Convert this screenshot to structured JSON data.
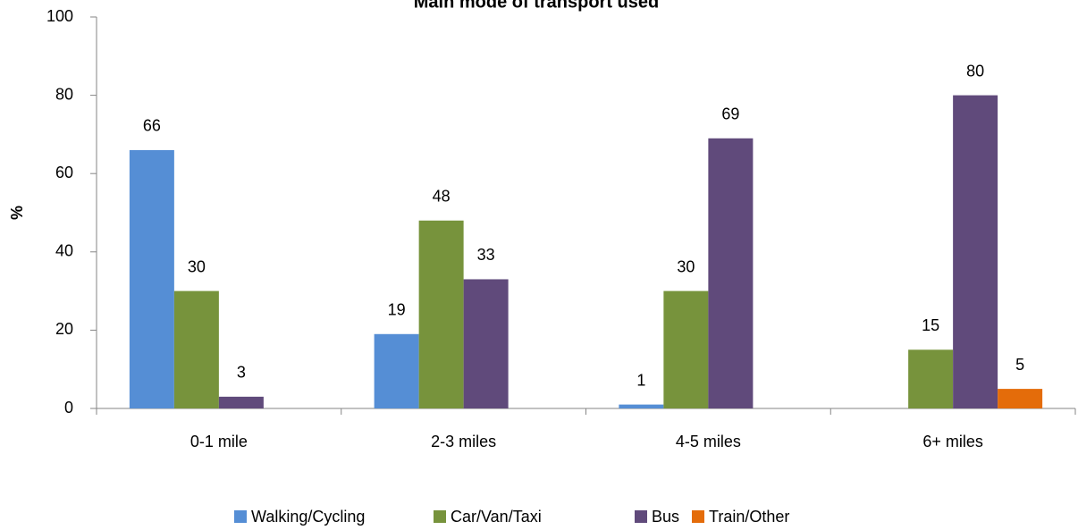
{
  "chart_data": {
    "type": "bar",
    "title": "Main mode of transport used",
    "y_label": "%",
    "categories": [
      "0-1 mile",
      "2-3 miles",
      "4-5 miles",
      "6+ miles"
    ],
    "series": [
      {
        "name": "Walking/Cycling",
        "color": "#558ed5",
        "values": [
          66,
          19,
          1,
          null
        ]
      },
      {
        "name": "Car/Van/Taxi",
        "color": "#77933c",
        "values": [
          30,
          48,
          30,
          15
        ]
      },
      {
        "name": "Bus",
        "color": "#604a7b",
        "values": [
          3,
          33,
          69,
          80
        ]
      },
      {
        "name": "Train/Other",
        "color": "#e46c0a",
        "values": [
          null,
          null,
          null,
          5
        ]
      }
    ],
    "ylim": [
      0,
      100
    ],
    "yticks": [
      0,
      20,
      40,
      60,
      80,
      100
    ],
    "legend": "bottom"
  }
}
